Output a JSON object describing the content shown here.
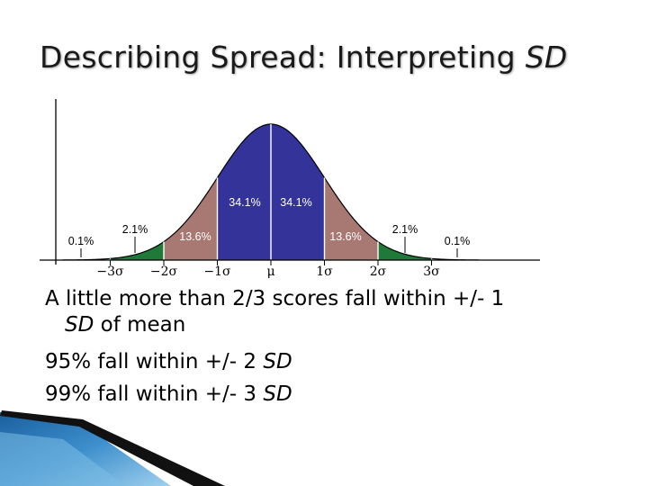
{
  "slide": {
    "title_main": "Describing Spread: Interpreting ",
    "title_em": "SD",
    "body": {
      "line1": "A little more than 2/3 scores fall within +/- 1",
      "line2_em": "SD",
      "line2_rest": " of mean",
      "line3_main": "95% fall within +/- 2 ",
      "line3_em": "SD",
      "line4_main": "99% fall within +/- 3 ",
      "line4_em": "SD"
    }
  },
  "diagram": {
    "distribution": "normal",
    "region_colors": {
      "center": "#33339a",
      "one_to_two": "#a87872",
      "two_to_three": "#1f7a3a",
      "tail": "#ffffff"
    },
    "axis_ticks": [
      "−3σ",
      "−2σ",
      "−1σ",
      "μ",
      "1σ",
      "2σ",
      "3σ"
    ],
    "percent_labels": {
      "left_tail": "0.1%",
      "left_outer": "2.1%",
      "left_mid": "13.6%",
      "left_center": "34.1%",
      "right_center": "34.1%",
      "right_mid": "13.6%",
      "right_outer": "2.1%",
      "right_tail": "0.1%"
    }
  }
}
